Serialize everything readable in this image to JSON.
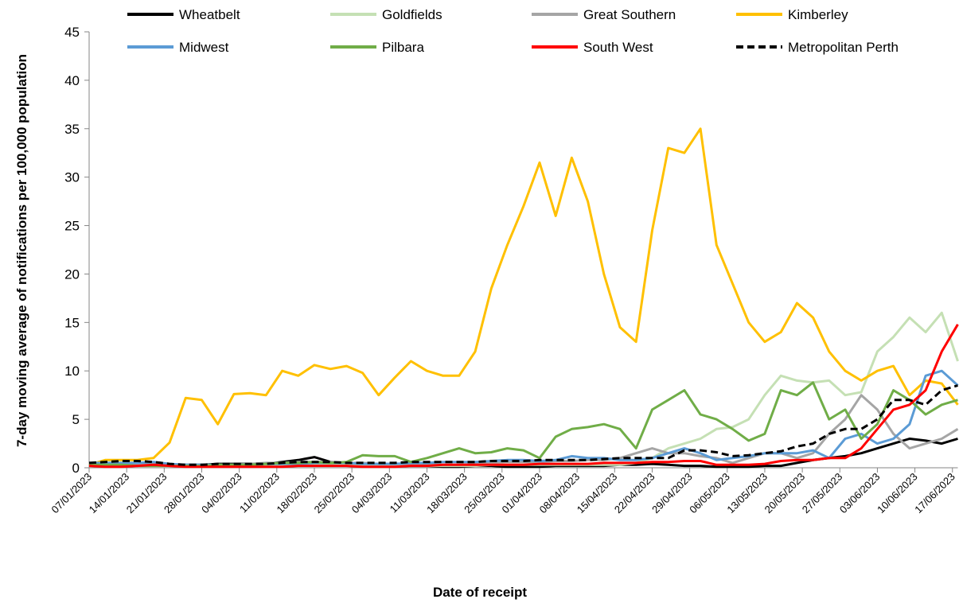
{
  "chart_data": {
    "type": "line",
    "x_label": "Date of receipt",
    "y_label": "7-day moving average of notifications per 100,000 population",
    "x": [
      "07/01/2023",
      "10/01/2023",
      "13/01/2023",
      "16/01/2023",
      "19/01/2023",
      "22/01/2023",
      "25/01/2023",
      "28/01/2023",
      "31/01/2023",
      "03/02/2023",
      "06/02/2023",
      "09/02/2023",
      "12/02/2023",
      "15/02/2023",
      "18/02/2023",
      "21/02/2023",
      "24/02/2023",
      "27/02/2023",
      "02/03/2023",
      "05/03/2023",
      "08/03/2023",
      "11/03/2023",
      "14/03/2023",
      "17/03/2023",
      "20/03/2023",
      "23/03/2023",
      "26/03/2023",
      "29/03/2023",
      "01/04/2023",
      "04/04/2023",
      "07/04/2023",
      "10/04/2023",
      "13/04/2023",
      "16/04/2023",
      "19/04/2023",
      "22/04/2023",
      "25/04/2023",
      "28/04/2023",
      "01/05/2023",
      "04/05/2023",
      "07/05/2023",
      "10/05/2023",
      "13/05/2023",
      "16/05/2023",
      "19/05/2023",
      "22/05/2023",
      "25/05/2023",
      "28/05/2023",
      "31/05/2023",
      "03/06/2023",
      "06/06/2023",
      "09/06/2023",
      "12/06/2023",
      "15/06/2023",
      "18/06/2023"
    ],
    "series": [
      {
        "name": "Wheatbelt",
        "color": "#000000",
        "values": [
          0.3,
          0.3,
          0.3,
          0.3,
          0.3,
          0.3,
          0.3,
          0.3,
          0.4,
          0.4,
          0.4,
          0.4,
          0.6,
          0.8,
          1.1,
          0.6,
          0.5,
          0.4,
          0.3,
          0.3,
          0.2,
          0.2,
          0.1,
          0.1,
          0.2,
          0.2,
          0.1,
          0.1,
          0.1,
          0.2,
          0.2,
          0.2,
          0.2,
          0.3,
          0.3,
          0.4,
          0.3,
          0.2,
          0.2,
          0.1,
          0.1,
          0.1,
          0.2,
          0.2,
          0.5,
          0.8,
          1.0,
          1.2,
          1.5,
          2.0,
          2.5,
          3.0,
          2.8,
          2.5,
          3.0
        ]
      },
      {
        "name": "Goldfields",
        "color": "#c5e0b4",
        "values": [
          0.2,
          0.2,
          0.2,
          0.2,
          0.2,
          0.2,
          0.2,
          0.2,
          0.2,
          0.2,
          0.2,
          0.2,
          0.2,
          0.3,
          0.3,
          0.3,
          0.3,
          0.3,
          0.2,
          0.2,
          0.2,
          0.2,
          0.2,
          0.2,
          0.2,
          0.3,
          0.3,
          0.3,
          0.3,
          0.3,
          0.3,
          0.3,
          0.3,
          0.3,
          0.5,
          1,
          2,
          2.5,
          3,
          4,
          4.2,
          5,
          7.5,
          9.5,
          9,
          8.8,
          9,
          7.5,
          7.8,
          12,
          13.5,
          15.5,
          14,
          16,
          11
        ]
      },
      {
        "name": "Great Southern",
        "color": "#a5a5a5",
        "values": [
          0.3,
          0.3,
          0.3,
          0.3,
          0.3,
          0.3,
          0.3,
          0.3,
          0.3,
          0.3,
          0.4,
          0.5,
          0.5,
          0.6,
          0.6,
          0.6,
          0.5,
          0.5,
          0.4,
          0.4,
          0.4,
          0.3,
          0.3,
          0.3,
          0.4,
          0.5,
          0.6,
          0.6,
          0.6,
          0.7,
          0.7,
          0.8,
          0.8,
          1,
          1.5,
          2,
          1.5,
          1.5,
          1.2,
          1,
          0.5,
          1,
          1.5,
          1.5,
          1,
          1.5,
          3.5,
          5,
          7.5,
          6,
          3.5,
          2,
          2.5,
          3,
          4
        ]
      },
      {
        "name": "Kimberley",
        "color": "#ffc000",
        "values": [
          0.3,
          0.8,
          0.8,
          0.8,
          1.0,
          2.6,
          7.2,
          7,
          4.5,
          7.6,
          7.7,
          7.5,
          10,
          9.5,
          10.6,
          10.2,
          10.5,
          9.8,
          7.5,
          9.3,
          11,
          10,
          9.5,
          9.5,
          12,
          18.5,
          23,
          27,
          31.5,
          26,
          32,
          27.5,
          20,
          14.5,
          13,
          24.5,
          33,
          32.5,
          35,
          23,
          19,
          15,
          13,
          14,
          17,
          15.5,
          12,
          10,
          9,
          10,
          10.5,
          7.5,
          9,
          8.7,
          6.5
        ]
      },
      {
        "name": "Midwest",
        "color": "#5b9bd5",
        "values": [
          0.5,
          0.5,
          0.5,
          0.5,
          0.6,
          0.4,
          0.3,
          0.3,
          0.3,
          0.3,
          0.3,
          0.4,
          0.4,
          0.4,
          0.5,
          0.5,
          0.5,
          0.4,
          0.4,
          0.4,
          0.5,
          0.5,
          0.6,
          0.6,
          0.6,
          0.7,
          0.8,
          0.8,
          0.7,
          0.8,
          1.2,
          1.0,
          1.0,
          0.8,
          0.8,
          1.0,
          1.5,
          2.0,
          1.5,
          0.8,
          1.0,
          1.2,
          1.5,
          1.5,
          1.5,
          1.8,
          1.0,
          3.0,
          3.5,
          2.5,
          3.0,
          4.5,
          9.5,
          10,
          8.5
        ]
      },
      {
        "name": "Pilbara",
        "color": "#70ad47",
        "values": [
          0.3,
          0.3,
          0.3,
          0.2,
          0.2,
          0.2,
          0.2,
          0.2,
          0.3,
          0.3,
          0.3,
          0.4,
          0.5,
          0.5,
          0.6,
          0.5,
          0.6,
          1.3,
          1.2,
          1.2,
          0.6,
          1,
          1.5,
          2,
          1.5,
          1.6,
          2,
          1.8,
          1,
          3.2,
          4,
          4.2,
          4.5,
          4,
          2,
          6,
          7,
          8,
          5.5,
          5,
          4,
          2.8,
          3.5,
          8,
          7.5,
          8.8,
          5,
          6,
          3,
          4.5,
          8,
          7,
          5.5,
          6.5,
          7
        ]
      },
      {
        "name": "South West",
        "color": "#ff0000",
        "values": [
          0.2,
          0.1,
          0.1,
          0.2,
          0.3,
          0.2,
          0.1,
          0.1,
          0.1,
          0.1,
          0.1,
          0.1,
          0.1,
          0.2,
          0.2,
          0.2,
          0.2,
          0.1,
          0.1,
          0.1,
          0.2,
          0.2,
          0.3,
          0.3,
          0.3,
          0.3,
          0.3,
          0.3,
          0.4,
          0.4,
          0.4,
          0.4,
          0.5,
          0.5,
          0.5,
          0.6,
          0.6,
          0.7,
          0.7,
          0.3,
          0.3,
          0.3,
          0.4,
          0.7,
          0.8,
          0.8,
          1,
          1,
          2,
          4,
          6,
          6.5,
          8,
          12,
          14.8
        ]
      },
      {
        "name": "Metropolitan Perth",
        "color": "#000000",
        "line_style": "dashed",
        "values": [
          0.5,
          0.6,
          0.7,
          0.7,
          0.6,
          0.4,
          0.3,
          0.3,
          0.4,
          0.4,
          0.4,
          0.4,
          0.5,
          0.6,
          0.6,
          0.6,
          0.5,
          0.5,
          0.5,
          0.5,
          0.6,
          0.6,
          0.6,
          0.6,
          0.6,
          0.7,
          0.7,
          0.7,
          0.8,
          0.8,
          0.8,
          0.8,
          0.9,
          1.0,
          1.0,
          1.0,
          1.0,
          1.8,
          1.8,
          1.6,
          1.2,
          1.3,
          1.5,
          1.7,
          2.2,
          2.5,
          3.5,
          4,
          4,
          5,
          7,
          7,
          6.5,
          8,
          8.5
        ]
      }
    ],
    "xlim": [
      "07/01/2023",
      "18/06/2023"
    ],
    "xticks": [
      "07/01/2023",
      "14/01/2023",
      "21/01/2023",
      "28/01/2023",
      "04/02/2023",
      "11/02/2023",
      "18/02/2023",
      "25/02/2023",
      "04/03/2023",
      "11/03/2023",
      "18/03/2023",
      "25/03/2023",
      "01/04/2023",
      "08/04/2023",
      "15/04/2023",
      "22/04/2023",
      "29/04/2023",
      "06/05/2023",
      "13/05/2023",
      "20/05/2023",
      "27/05/2023",
      "03/06/2023",
      "10/06/2023",
      "17/06/2023"
    ],
    "ylim": [
      0,
      45
    ],
    "yticks": [
      0,
      5,
      10,
      15,
      20,
      25,
      30,
      35,
      40,
      45
    ],
    "grid": false,
    "legend": "top"
  }
}
